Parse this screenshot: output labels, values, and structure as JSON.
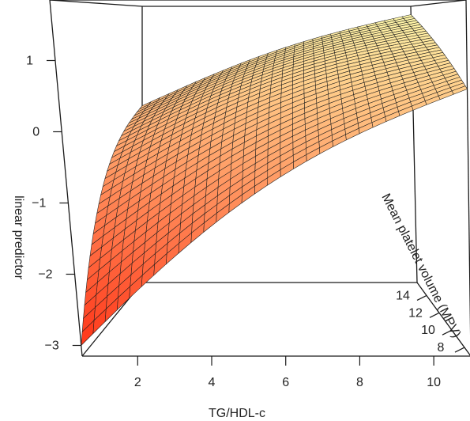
{
  "chart_data": {
    "type": "surface",
    "xlabel": "TG/HDL-c",
    "ylabel": "Mean platelet volume (MPV)",
    "zlabel": "linear predictor",
    "xlim": [
      0.5,
      11
    ],
    "ylim": [
      7,
      15.5
    ],
    "zlim": [
      -3.15,
      1.85
    ],
    "x_ticks": [
      2,
      4,
      6,
      8,
      10
    ],
    "y_ticks": [
      8,
      10,
      12,
      14
    ],
    "z_ticks": [
      -3,
      -2,
      -1,
      0,
      1
    ],
    "color_low": "#ff2a10",
    "color_high": "#ffffb0",
    "surface_corners": [
      {
        "x": 0.5,
        "y": 7,
        "z": -3.0
      },
      {
        "x": 0.5,
        "y": 15.5,
        "z": 0.13
      },
      {
        "x": 11,
        "y": 15.5,
        "z": 1.85
      },
      {
        "x": 11,
        "y": 7,
        "z": 0.65
      }
    ],
    "grid": true,
    "box": true
  }
}
